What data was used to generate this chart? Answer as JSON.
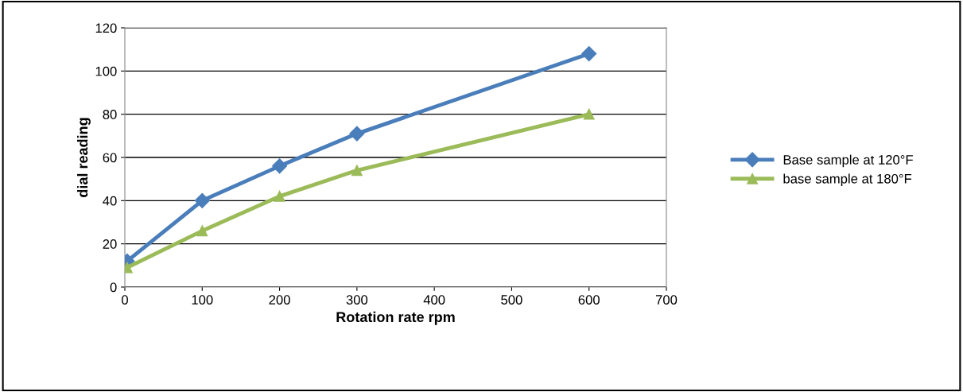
{
  "chart_data": {
    "type": "line",
    "xlabel": "Rotation rate rpm",
    "ylabel": "dial reading",
    "xlim": [
      0,
      700
    ],
    "xticks": [
      0,
      100,
      200,
      300,
      400,
      500,
      600,
      700
    ],
    "ylim": [
      0,
      120
    ],
    "yticks": [
      0,
      20,
      40,
      60,
      80,
      100,
      120
    ],
    "grid": "y",
    "legend": "right",
    "series": [
      {
        "name": "Base sample at 120°F",
        "color": "#4a7ebb",
        "marker": "diamond",
        "x": [
          3,
          100,
          200,
          300,
          600
        ],
        "values": [
          12,
          40,
          56,
          71,
          108
        ]
      },
      {
        "name": "base sample at 180°F",
        "color": "#9bbb59",
        "marker": "triangle",
        "x": [
          3,
          100,
          200,
          300,
          600
        ],
        "values": [
          9,
          26,
          42,
          54,
          80
        ]
      }
    ]
  }
}
